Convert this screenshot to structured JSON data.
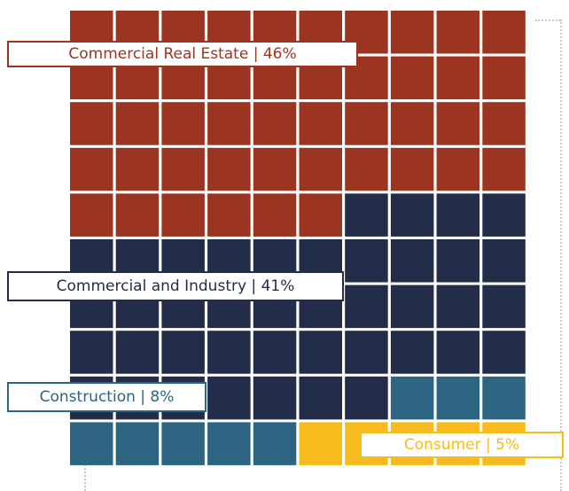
{
  "chart_data": {
    "type": "waffle",
    "grid": {
      "rows": 10,
      "cols": 10
    },
    "categories": [
      {
        "label": "Commercial Real Estate | 46%",
        "name": "Commercial Real Estate",
        "value": 46,
        "color": "#9b3522"
      },
      {
        "label": "Commercial and Industry | 41%",
        "name": "Commercial and Industry",
        "value": 41,
        "color": "#232c48"
      },
      {
        "label": "Construction | 8%",
        "name": "Construction",
        "value": 8,
        "color": "#2c6481"
      },
      {
        "label": "Consumer | 5%",
        "name": "Consumer",
        "value": 5,
        "color": "#f8bb1d"
      }
    ]
  }
}
